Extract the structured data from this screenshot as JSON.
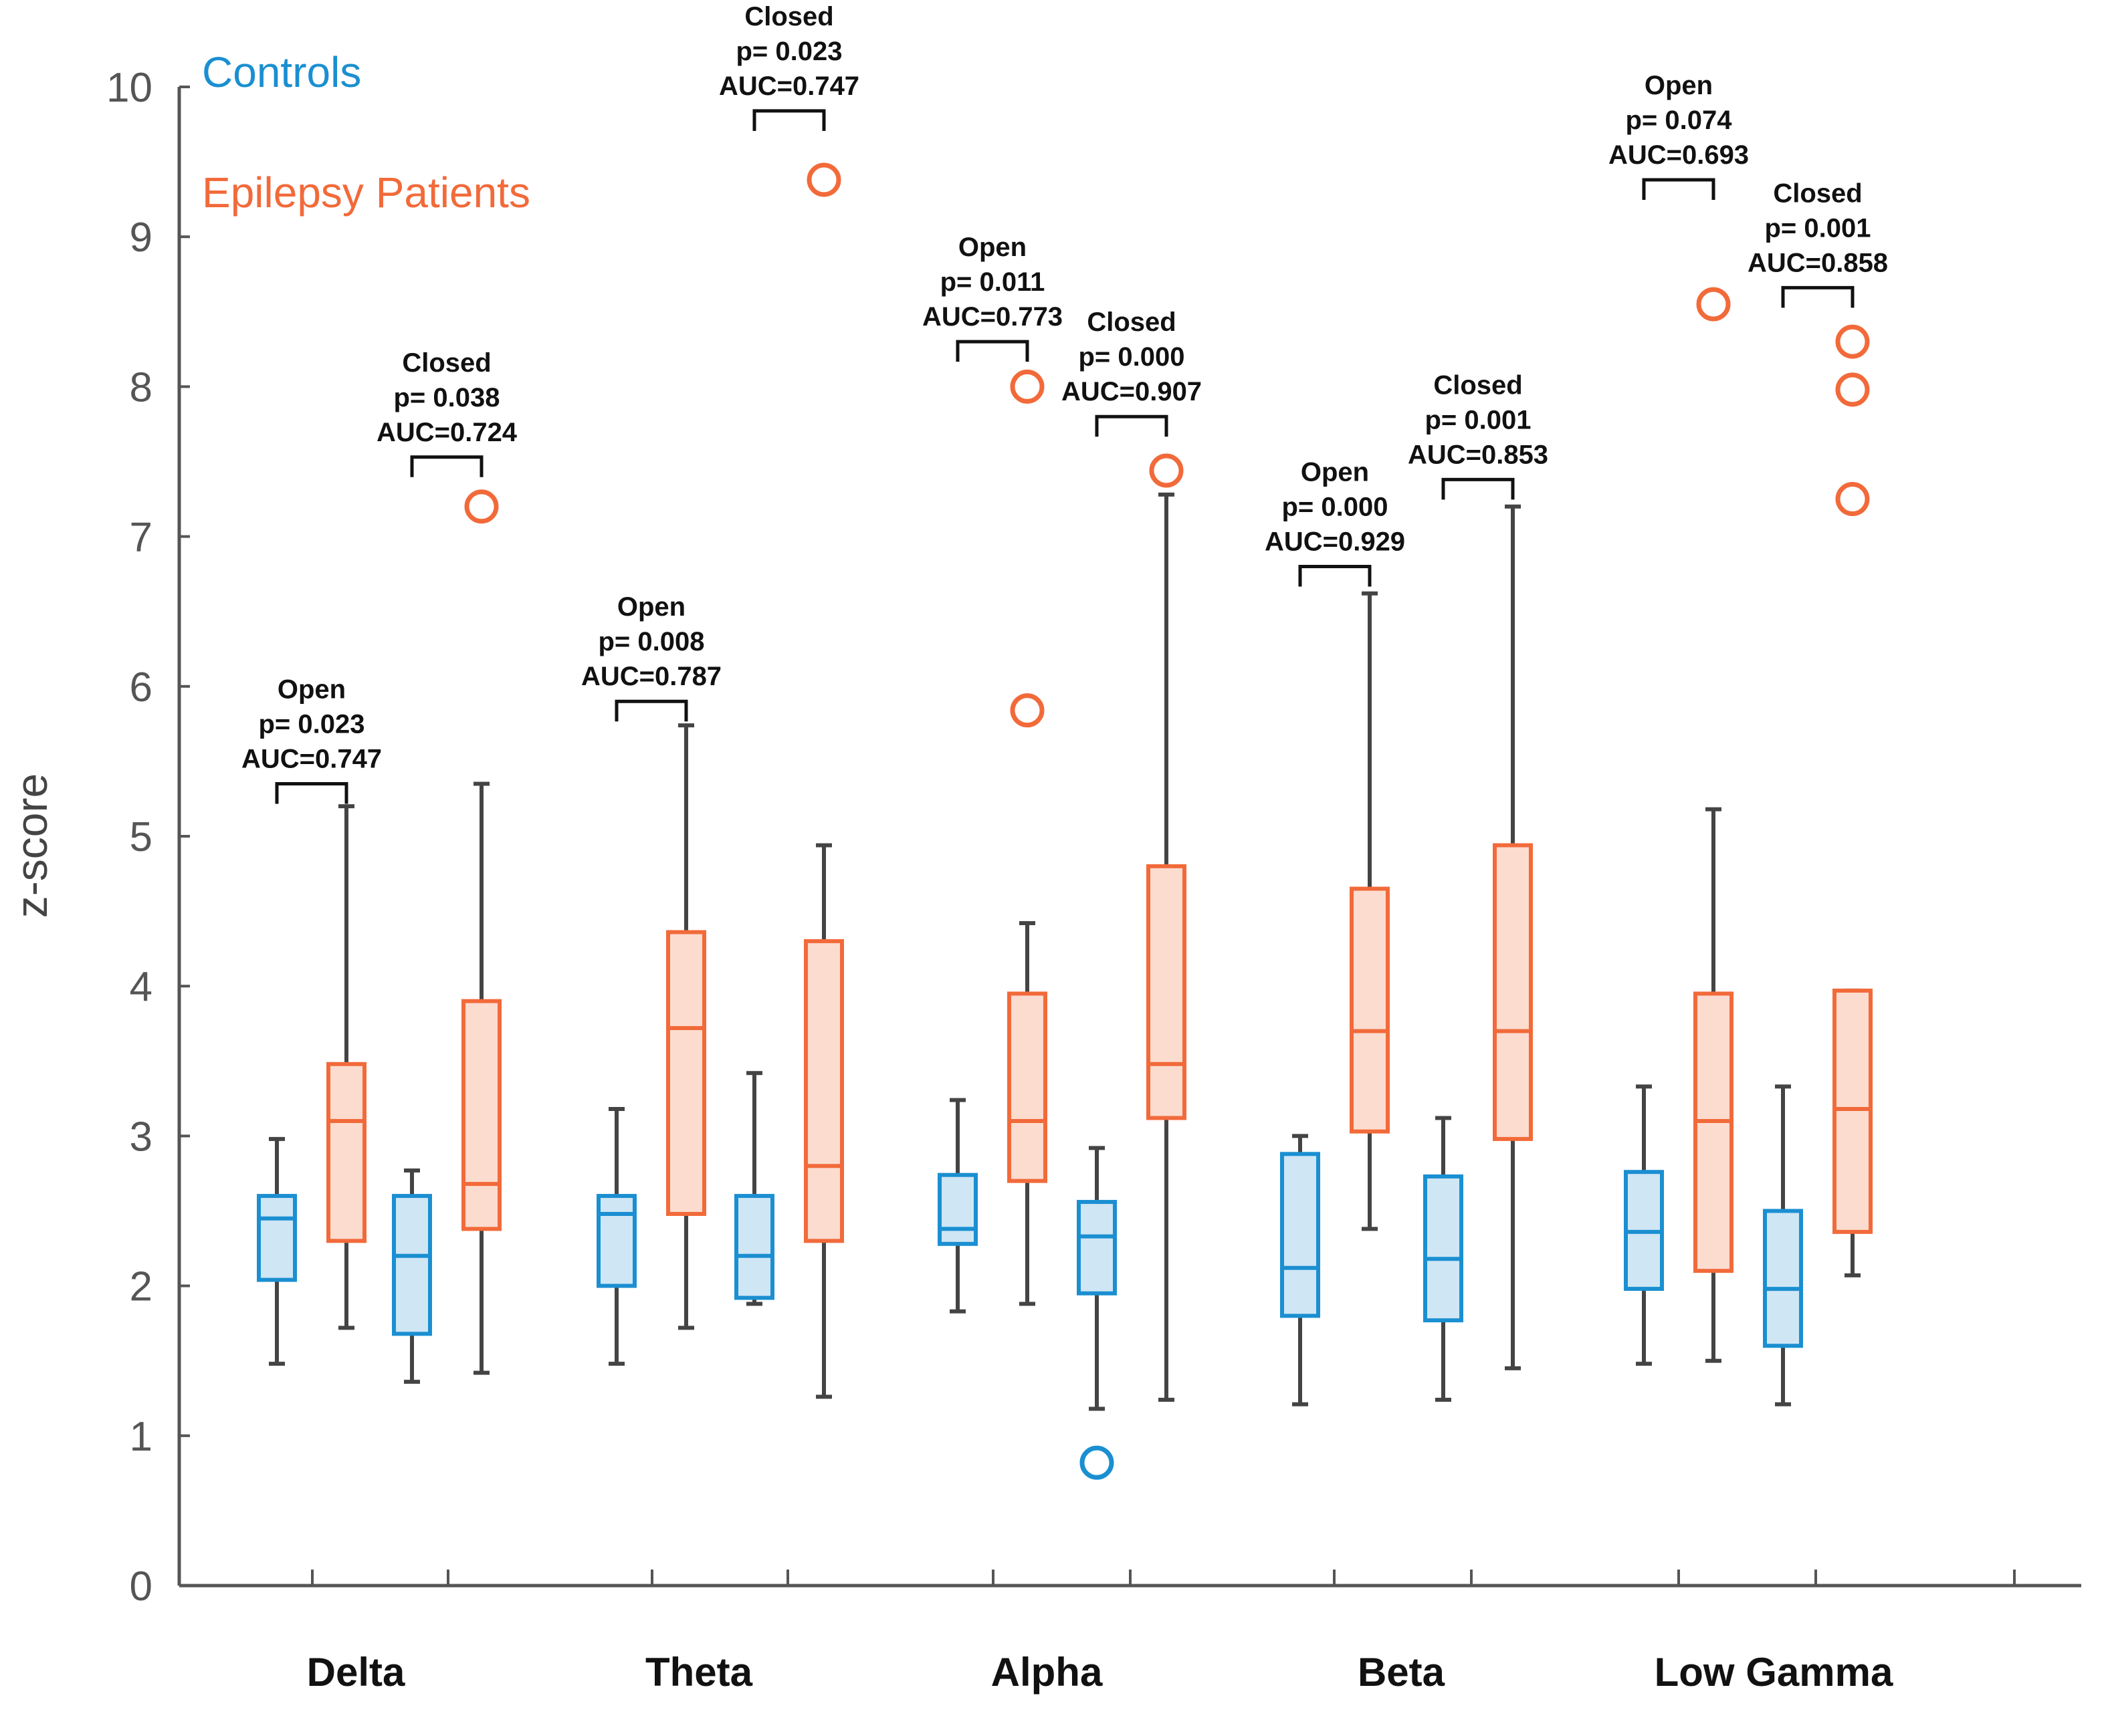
{
  "chart_data": {
    "type": "boxplot",
    "ylabel": "z-score",
    "xlabel": "",
    "ylim": [
      0,
      10
    ],
    "yticks": [
      0,
      1,
      2,
      3,
      4,
      5,
      6,
      7,
      8,
      9,
      10
    ],
    "categories": [
      "Delta",
      "Theta",
      "Alpha",
      "Beta",
      "Low Gamma"
    ],
    "legend": [
      {
        "name": "Controls",
        "color": "#1a8fd1"
      },
      {
        "name": "Epilepsy Patients",
        "color": "#f26a3a"
      }
    ],
    "colors": {
      "controls_stroke": "#1a8fd1",
      "controls_fill": "#cfe6f5",
      "patients_stroke": "#f26a3a",
      "patients_fill": "#fcdccf",
      "whisker": "#444444",
      "axis": "#555555"
    },
    "boxes": [
      {
        "band": "Delta",
        "condition": "Open",
        "group": "Controls",
        "min": 1.48,
        "q1": 2.04,
        "median": 2.45,
        "q3": 2.6,
        "max": 2.98,
        "outliers": []
      },
      {
        "band": "Delta",
        "condition": "Open",
        "group": "Epilepsy Patients",
        "min": 1.72,
        "q1": 2.3,
        "median": 3.1,
        "q3": 3.48,
        "max": 5.2,
        "outliers": []
      },
      {
        "band": "Delta",
        "condition": "Closed",
        "group": "Controls",
        "min": 1.36,
        "q1": 1.68,
        "median": 2.2,
        "q3": 2.6,
        "max": 2.77,
        "outliers": []
      },
      {
        "band": "Delta",
        "condition": "Closed",
        "group": "Epilepsy Patients",
        "min": 1.42,
        "q1": 2.38,
        "median": 2.68,
        "q3": 3.9,
        "max": 5.35,
        "outliers": [
          7.2
        ]
      },
      {
        "band": "Theta",
        "condition": "Open",
        "group": "Controls",
        "min": 1.48,
        "q1": 2.0,
        "median": 2.48,
        "q3": 2.6,
        "max": 3.18,
        "outliers": []
      },
      {
        "band": "Theta",
        "condition": "Open",
        "group": "Epilepsy Patients",
        "min": 1.72,
        "q1": 2.48,
        "median": 3.72,
        "q3": 4.36,
        "max": 5.74,
        "outliers": []
      },
      {
        "band": "Theta",
        "condition": "Closed",
        "group": "Controls",
        "min": 1.88,
        "q1": 1.92,
        "median": 2.2,
        "q3": 2.6,
        "max": 3.42,
        "outliers": []
      },
      {
        "band": "Theta",
        "condition": "Closed",
        "group": "Epilepsy Patients",
        "min": 1.26,
        "q1": 2.3,
        "median": 2.8,
        "q3": 4.3,
        "max": 4.94,
        "outliers": [
          9.38
        ]
      },
      {
        "band": "Alpha",
        "condition": "Open",
        "group": "Controls",
        "min": 1.83,
        "q1": 2.28,
        "median": 2.38,
        "q3": 2.74,
        "max": 3.24,
        "outliers": []
      },
      {
        "band": "Alpha",
        "condition": "Open",
        "group": "Epilepsy Patients",
        "min": 1.88,
        "q1": 2.7,
        "median": 3.1,
        "q3": 3.95,
        "max": 4.42,
        "outliers": [
          5.84,
          8.0
        ]
      },
      {
        "band": "Alpha",
        "condition": "Closed",
        "group": "Controls",
        "min": 1.18,
        "q1": 1.95,
        "median": 2.33,
        "q3": 2.56,
        "max": 2.92,
        "outliers": [
          0.82
        ]
      },
      {
        "band": "Alpha",
        "condition": "Closed",
        "group": "Epilepsy Patients",
        "min": 1.24,
        "q1": 3.12,
        "median": 3.48,
        "q3": 4.8,
        "max": 7.28,
        "outliers": [
          7.44
        ]
      },
      {
        "band": "Beta",
        "condition": "Open",
        "group": "Controls",
        "min": 1.21,
        "q1": 1.8,
        "median": 2.12,
        "q3": 2.88,
        "max": 3.0,
        "outliers": []
      },
      {
        "band": "Beta",
        "condition": "Open",
        "group": "Epilepsy Patients",
        "min": 2.38,
        "q1": 3.03,
        "median": 3.7,
        "q3": 4.65,
        "max": 6.62,
        "outliers": []
      },
      {
        "band": "Beta",
        "condition": "Closed",
        "group": "Controls",
        "min": 1.24,
        "q1": 1.77,
        "median": 2.18,
        "q3": 2.73,
        "max": 3.12,
        "outliers": []
      },
      {
        "band": "Beta",
        "condition": "Closed",
        "group": "Epilepsy Patients",
        "min": 1.45,
        "q1": 2.98,
        "median": 3.7,
        "q3": 4.94,
        "max": 7.2,
        "outliers": []
      },
      {
        "band": "Low Gamma",
        "condition": "Open",
        "group": "Controls",
        "min": 1.48,
        "q1": 1.98,
        "median": 2.36,
        "q3": 2.76,
        "max": 3.33,
        "outliers": []
      },
      {
        "band": "Low Gamma",
        "condition": "Open",
        "group": "Epilepsy Patients",
        "min": 1.5,
        "q1": 2.1,
        "median": 3.1,
        "q3": 3.95,
        "max": 5.18,
        "outliers": [
          8.55
        ]
      },
      {
        "band": "Low Gamma",
        "condition": "Closed",
        "group": "Controls",
        "min": 1.21,
        "q1": 1.6,
        "median": 1.98,
        "q3": 2.5,
        "max": 3.33,
        "outliers": []
      },
      {
        "band": "Low Gamma",
        "condition": "Closed",
        "group": "Epilepsy Patients",
        "min": 2.07,
        "q1": 2.36,
        "median": 3.18,
        "q3": 3.97,
        "max": 3.97,
        "outliers": [
          7.25,
          7.98,
          8.3
        ]
      }
    ],
    "annotations": [
      {
        "band": "Delta",
        "condition": "Open",
        "lines": [
          "Open",
          "p= 0.023",
          "AUC=0.747"
        ],
        "bracket_y": 5.35
      },
      {
        "band": "Delta",
        "condition": "Closed",
        "lines": [
          "Closed",
          "p= 0.038",
          "AUC=0.724"
        ],
        "bracket_y": 7.53
      },
      {
        "band": "Theta",
        "condition": "Open",
        "lines": [
          "Open",
          "p= 0.008",
          "AUC=0.787"
        ],
        "bracket_y": 5.9
      },
      {
        "band": "Theta",
        "condition": "Closed",
        "lines": [
          "Closed",
          "p= 0.023",
          "AUC=0.747"
        ],
        "bracket_y": 9.84
      },
      {
        "band": "Alpha",
        "condition": "Open",
        "lines": [
          "Open",
          "p= 0.011",
          "AUC=0.773"
        ],
        "bracket_y": 8.3
      },
      {
        "band": "Alpha",
        "condition": "Closed",
        "lines": [
          "Closed",
          "p= 0.000",
          "AUC=0.907"
        ],
        "bracket_y": 7.8
      },
      {
        "band": "Beta",
        "condition": "Open",
        "lines": [
          "Open",
          "p= 0.000",
          "AUC=0.929"
        ],
        "bracket_y": 6.8
      },
      {
        "band": "Beta",
        "condition": "Closed",
        "lines": [
          "Closed",
          "p= 0.001",
          "AUC=0.853"
        ],
        "bracket_y": 7.38
      },
      {
        "band": "Low Gamma",
        "condition": "Open",
        "lines": [
          "Open",
          "p= 0.074",
          "AUC=0.693"
        ],
        "bracket_y": 9.38
      },
      {
        "band": "Low Gamma",
        "condition": "Closed",
        "lines": [
          "Closed",
          "p= 0.001",
          "AUC=0.858"
        ],
        "bracket_y": 8.66
      }
    ]
  }
}
